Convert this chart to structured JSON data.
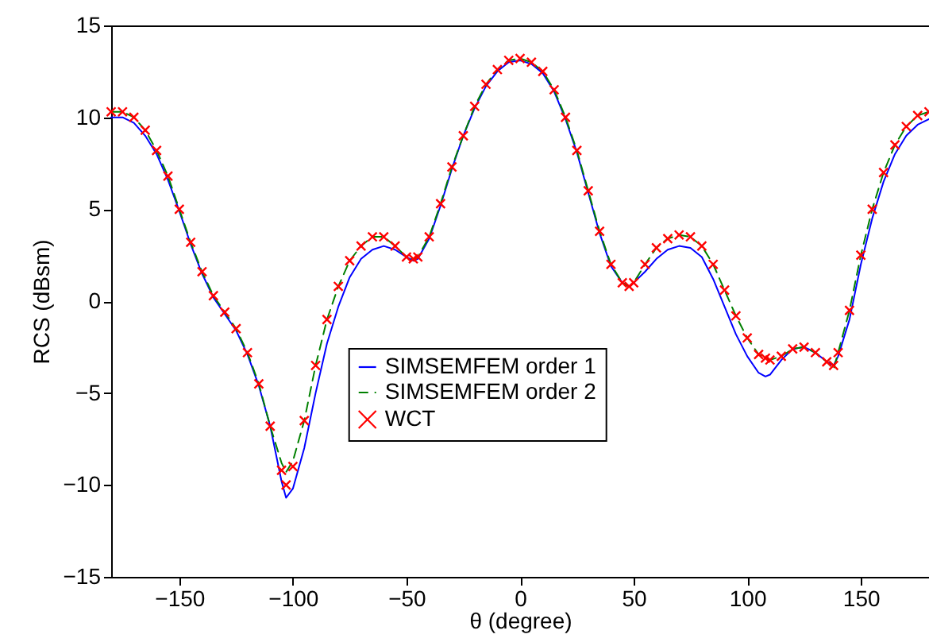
{
  "chart_data": {
    "type": "line",
    "xlabel": "θ (degree)",
    "ylabel": "RCS (dBsm)",
    "xlim": [
      -180,
      180
    ],
    "ylim": [
      -15,
      15
    ],
    "xticks": [
      -150,
      -100,
      -50,
      0,
      50,
      100,
      150
    ],
    "yticks": [
      -15,
      -10,
      -5,
      0,
      5,
      10,
      15
    ],
    "grid": false,
    "legend": "center",
    "x": [
      -180,
      -175,
      -170,
      -165,
      -160,
      -155,
      -150,
      -145,
      -140,
      -135,
      -130,
      -125,
      -120,
      -115,
      -110,
      -105,
      -103,
      -100,
      -95,
      -90,
      -85,
      -80,
      -75,
      -70,
      -65,
      -60,
      -55,
      -50,
      -47,
      -45,
      -40,
      -35,
      -30,
      -25,
      -20,
      -15,
      -10,
      -5,
      0,
      5,
      10,
      15,
      20,
      25,
      30,
      35,
      40,
      45,
      48,
      50,
      55,
      60,
      65,
      70,
      75,
      80,
      85,
      90,
      95,
      100,
      105,
      108,
      110,
      115,
      120,
      125,
      130,
      135,
      138,
      140,
      145,
      150,
      155,
      160,
      165,
      170,
      175,
      180
    ],
    "series": [
      {
        "name": "SIMSEMFEM order 1",
        "line_style": "solid",
        "color": "#0000ff",
        "values": [
          10.0,
          10.0,
          9.7,
          9.0,
          8.0,
          6.6,
          4.9,
          3.1,
          1.5,
          0.2,
          -0.7,
          -1.6,
          -2.9,
          -4.6,
          -6.8,
          -9.8,
          -10.7,
          -10.2,
          -8.0,
          -5.0,
          -2.3,
          -0.3,
          1.3,
          2.3,
          2.8,
          3.0,
          2.8,
          2.4,
          2.2,
          2.3,
          3.4,
          5.2,
          7.2,
          9.0,
          10.5,
          11.7,
          12.5,
          13.0,
          13.1,
          12.9,
          12.4,
          11.4,
          9.9,
          8.1,
          5.9,
          3.7,
          1.9,
          1.0,
          0.8,
          1.0,
          1.6,
          2.3,
          2.8,
          3.0,
          2.9,
          2.4,
          1.2,
          -0.3,
          -1.8,
          -3.0,
          -3.9,
          -4.1,
          -4.0,
          -3.2,
          -2.6,
          -2.5,
          -2.8,
          -3.3,
          -3.5,
          -3.0,
          -1.0,
          2.0,
          4.5,
          6.5,
          8.0,
          9.0,
          9.6,
          9.9
        ]
      },
      {
        "name": "SIMSEMFEM order 2",
        "line_style": "dashed",
        "color": "#008000",
        "values": [
          10.3,
          10.3,
          10.0,
          9.3,
          8.2,
          6.8,
          5.0,
          3.2,
          1.6,
          0.3,
          -0.6,
          -1.5,
          -2.8,
          -4.5,
          -6.8,
          -8.8,
          -9.3,
          -8.7,
          -6.5,
          -3.5,
          -1.0,
          0.8,
          2.2,
          3.0,
          3.5,
          3.5,
          3.0,
          2.4,
          2.3,
          2.4,
          3.5,
          5.3,
          7.3,
          9.0,
          10.6,
          11.8,
          12.6,
          13.1,
          13.2,
          13.0,
          12.5,
          11.5,
          10.0,
          8.2,
          6.0,
          3.8,
          2.0,
          1.0,
          0.8,
          1.0,
          2.0,
          2.9,
          3.4,
          3.6,
          3.5,
          3.0,
          2.0,
          0.6,
          -0.8,
          -2.0,
          -2.9,
          -3.1,
          -3.2,
          -3.0,
          -2.6,
          -2.5,
          -2.8,
          -3.3,
          -3.7,
          -2.8,
          -0.5,
          2.5,
          5.0,
          7.0,
          8.5,
          9.5,
          10.1,
          10.3
        ]
      },
      {
        "name": "WCT",
        "type": "scatter",
        "marker": "cross",
        "color": "#ff0000",
        "values": [
          10.3,
          10.3,
          10.0,
          9.3,
          8.2,
          6.8,
          5.0,
          3.2,
          1.6,
          0.3,
          -0.6,
          -1.5,
          -2.8,
          -4.5,
          -6.8,
          -9.2,
          -10.0,
          -9.0,
          -6.5,
          -3.5,
          -1.0,
          0.8,
          2.2,
          3.0,
          3.5,
          3.5,
          3.0,
          2.4,
          2.3,
          2.4,
          3.5,
          5.3,
          7.3,
          9.0,
          10.6,
          11.8,
          12.6,
          13.1,
          13.2,
          13.0,
          12.5,
          11.5,
          10.0,
          8.2,
          6.0,
          3.8,
          2.0,
          1.0,
          0.8,
          1.0,
          2.0,
          2.9,
          3.4,
          3.6,
          3.5,
          3.0,
          2.0,
          0.6,
          -0.8,
          -2.0,
          -2.9,
          -3.1,
          -3.2,
          -3.0,
          -2.6,
          -2.5,
          -2.8,
          -3.3,
          -3.5,
          -2.8,
          -0.5,
          2.5,
          5.0,
          7.0,
          8.5,
          9.5,
          10.1,
          10.3
        ]
      }
    ]
  }
}
